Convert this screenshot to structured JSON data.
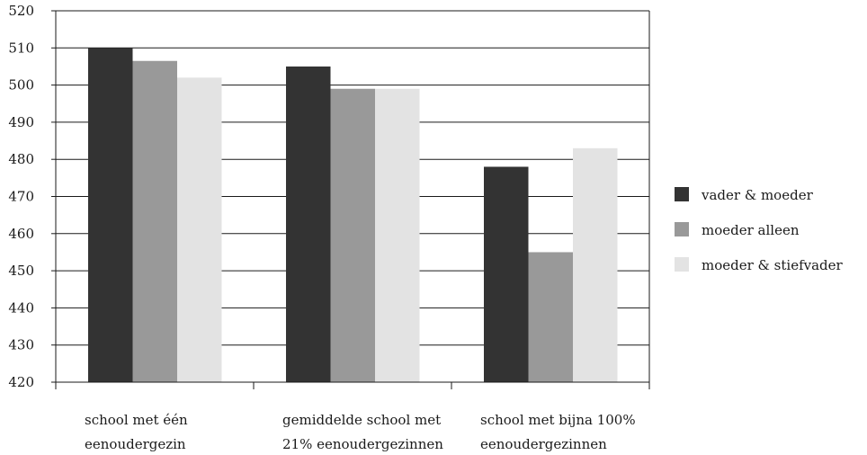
{
  "chart_data": {
    "type": "bar",
    "categories": [
      [
        "school met één",
        "eenoudergezin"
      ],
      [
        "gemiddelde school met",
        "21% eenoudergezinnen"
      ],
      [
        "school met bijna 100%",
        "eenoudergezinnen"
      ]
    ],
    "series": [
      {
        "name": "vader & moeder",
        "color": "#333333",
        "values": [
          510,
          505,
          478
        ]
      },
      {
        "name": "moeder alleen",
        "color": "#999999",
        "values": [
          506.5,
          499,
          455
        ]
      },
      {
        "name": "moeder & stiefvader",
        "color": "#e3e3e3",
        "values": [
          502,
          499,
          483
        ]
      }
    ],
    "ylim": [
      420,
      520
    ],
    "yticks": [
      420,
      430,
      440,
      450,
      460,
      470,
      480,
      490,
      500,
      510,
      520
    ],
    "grid": true,
    "legend_position": "right"
  }
}
